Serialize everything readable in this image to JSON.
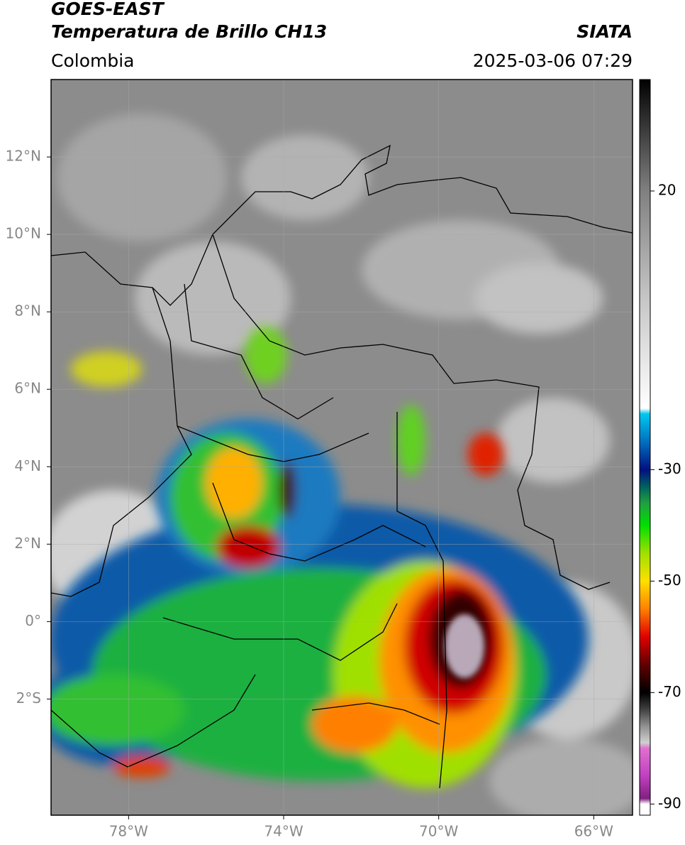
{
  "header": {
    "title": "GOES-EAST",
    "subtitle": "Temperatura de Brillo CH13",
    "source": "SIATA",
    "region": "Colombia",
    "datetime": "2025-03-06 07:29"
  },
  "chart_data": {
    "type": "map",
    "xlim": [
      -80,
      -65
    ],
    "ylim": [
      -5,
      14
    ],
    "xticks": [
      {
        "value": -78,
        "label": "78°W"
      },
      {
        "value": -74,
        "label": "74°W"
      },
      {
        "value": -70,
        "label": "70°W"
      },
      {
        "value": -66,
        "label": "66°W"
      }
    ],
    "yticks": [
      {
        "value": 12,
        "label": "12°N"
      },
      {
        "value": 10,
        "label": "10°N"
      },
      {
        "value": 8,
        "label": "8°N"
      },
      {
        "value": 6,
        "label": "6°N"
      },
      {
        "value": 4,
        "label": "4°N"
      },
      {
        "value": 2,
        "label": "2°N"
      },
      {
        "value": 0,
        "label": "0°"
      },
      {
        "value": -2,
        "label": "2°S"
      }
    ],
    "grid": true,
    "colorbar": {
      "lim": [
        -92,
        40
      ],
      "ticks": [
        20,
        -30,
        -50,
        -70,
        -90
      ],
      "colormap": [
        {
          "value": 40,
          "color": "#000000"
        },
        {
          "value": 35,
          "color": "#222222"
        },
        {
          "value": 20,
          "color": "#808080"
        },
        {
          "value": 0,
          "color": "#c8c8c8"
        },
        {
          "value": -19,
          "color": "#ffffff"
        },
        {
          "value": -20,
          "color": "#00c8f0"
        },
        {
          "value": -25,
          "color": "#0070c0"
        },
        {
          "value": -30,
          "color": "#001080"
        },
        {
          "value": -33,
          "color": "#006060"
        },
        {
          "value": -36,
          "color": "#20a040"
        },
        {
          "value": -40,
          "color": "#00e000"
        },
        {
          "value": -45,
          "color": "#a0e000"
        },
        {
          "value": -50,
          "color": "#ffe000"
        },
        {
          "value": -55,
          "color": "#ff8000"
        },
        {
          "value": -60,
          "color": "#e00000"
        },
        {
          "value": -65,
          "color": "#600000"
        },
        {
          "value": -70,
          "color": "#000000"
        },
        {
          "value": -73,
          "color": "#404040"
        },
        {
          "value": -76,
          "color": "#909090"
        },
        {
          "value": -79,
          "color": "#d0d0d0"
        },
        {
          "value": -80,
          "color": "#e070d0"
        },
        {
          "value": -85,
          "color": "#c040c0"
        },
        {
          "value": -89,
          "color": "#802080"
        },
        {
          "value": -90,
          "color": "#ffffff"
        },
        {
          "value": -92,
          "color": "#ffffff"
        }
      ]
    }
  }
}
